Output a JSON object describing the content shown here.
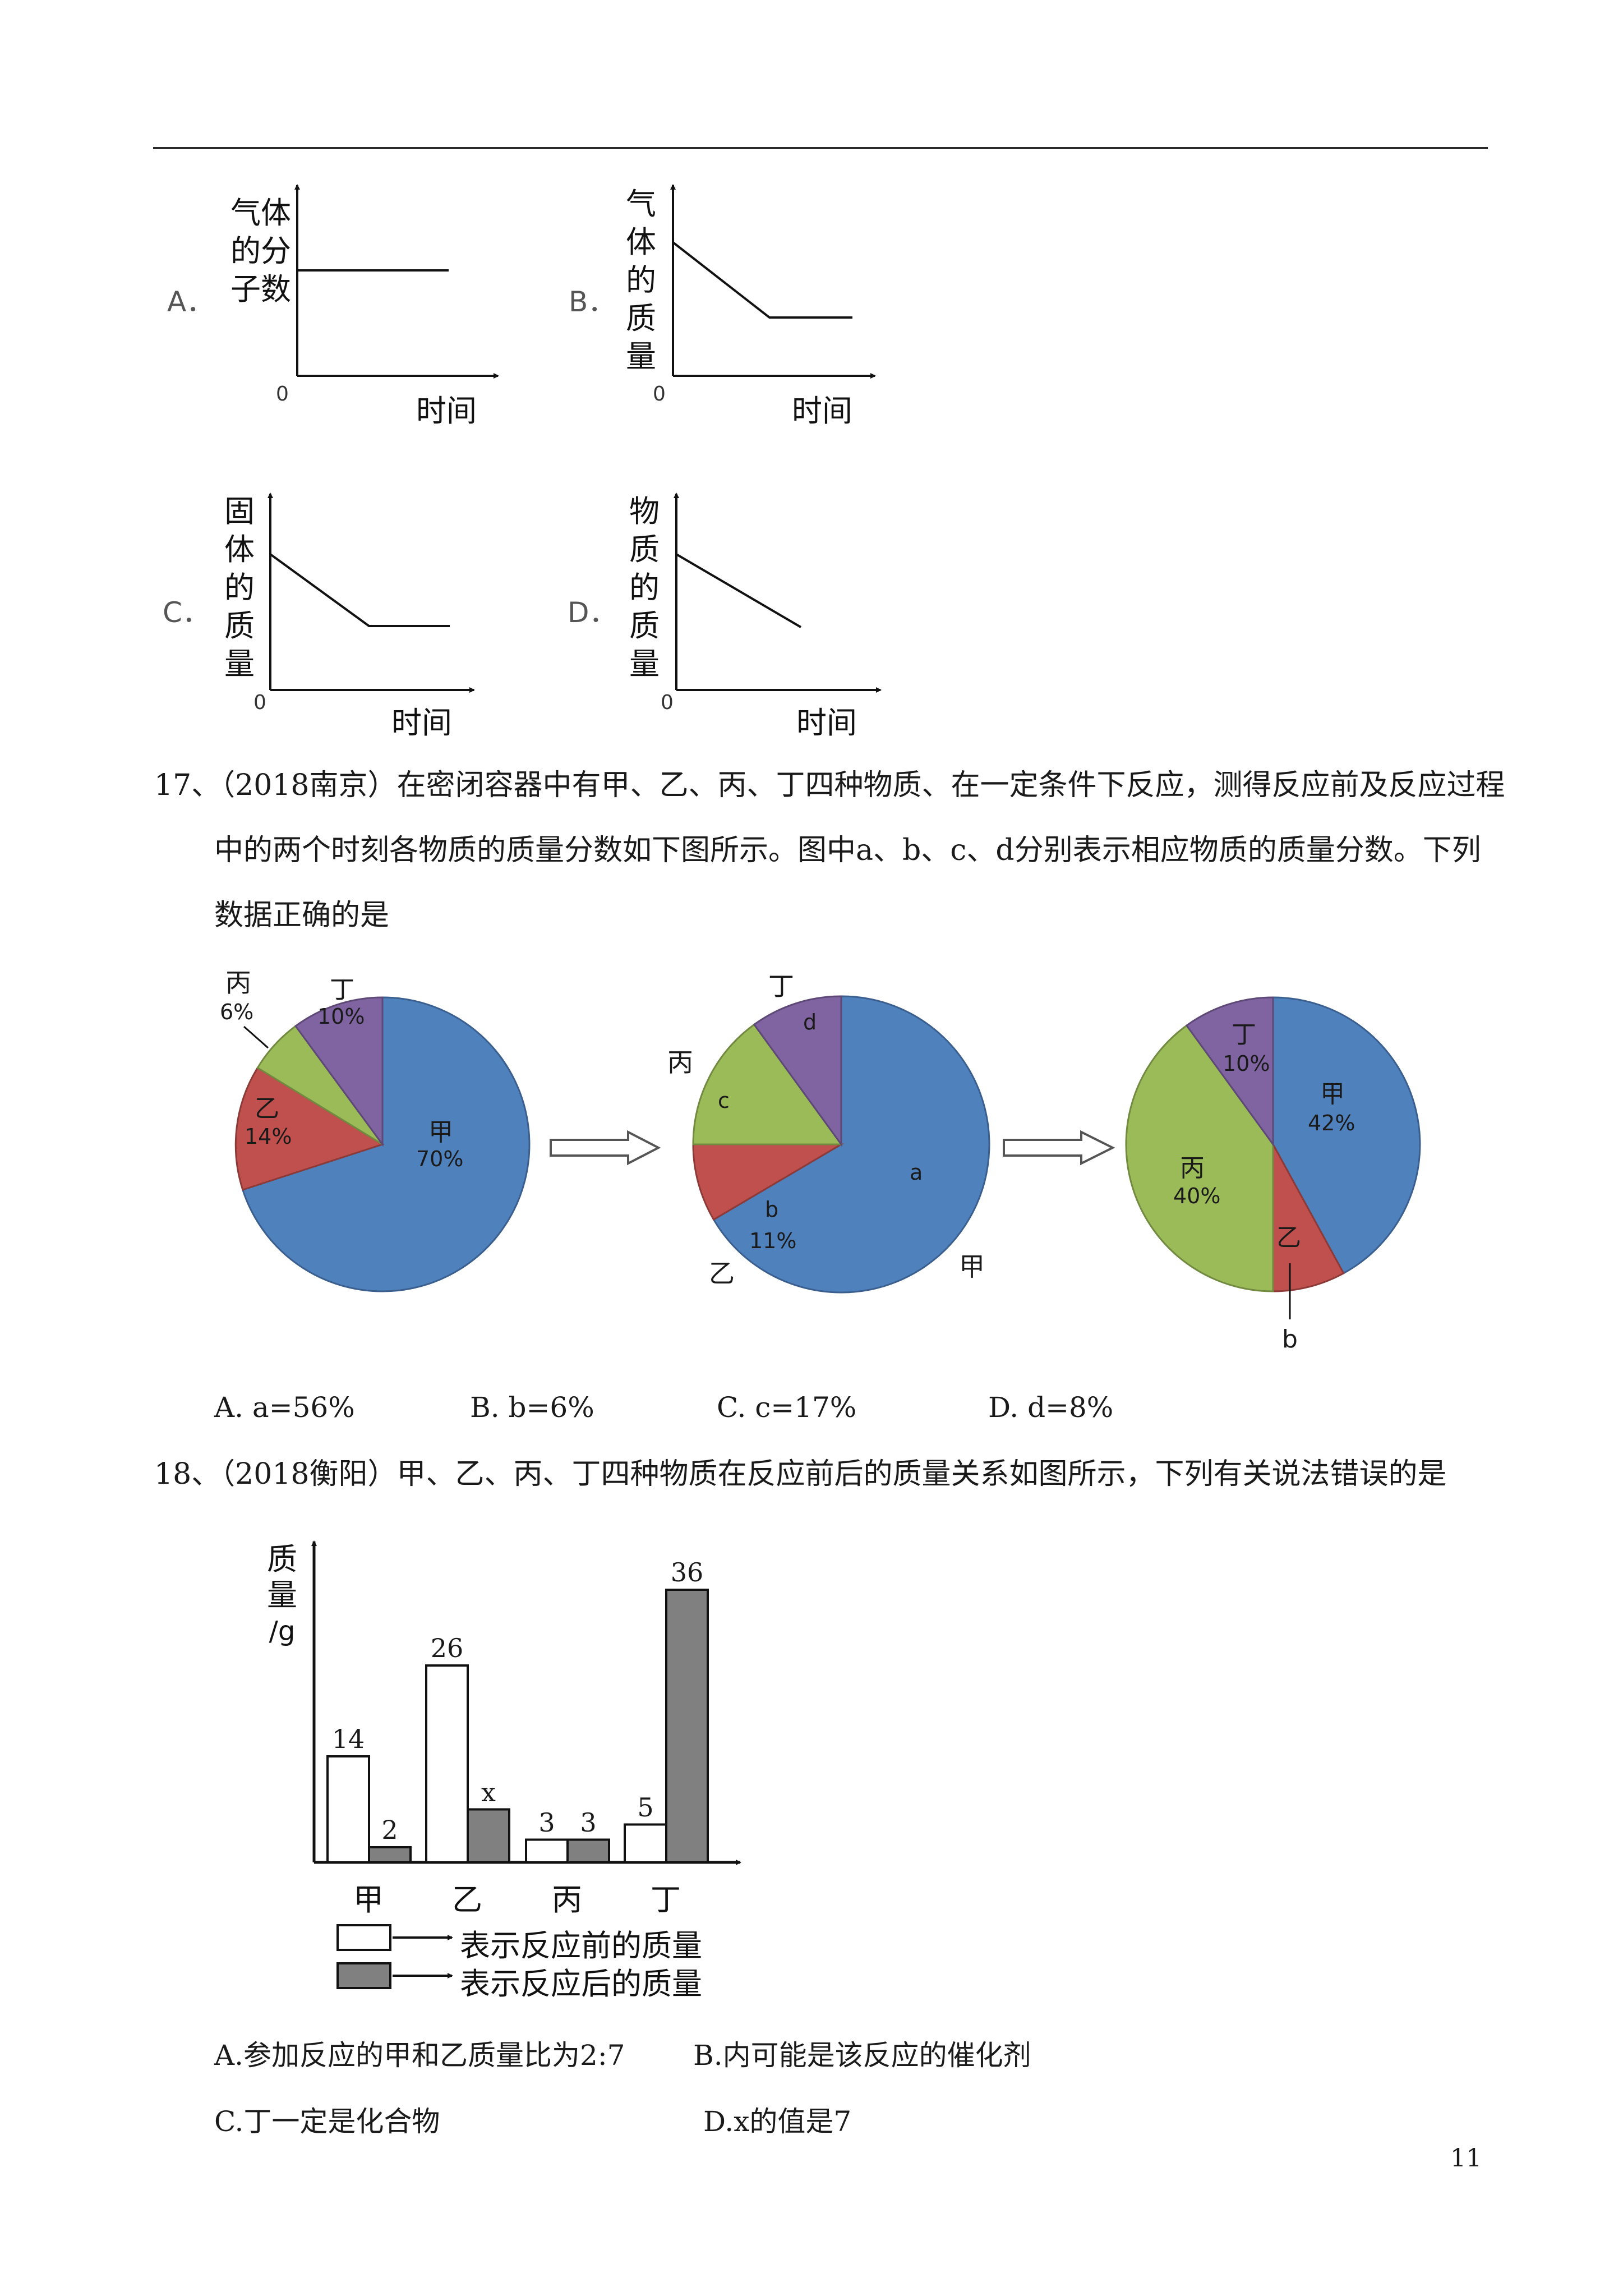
{
  "graphs": [
    {
      "letter": "A．",
      "ylabel_lines": [
        "气体",
        "的分",
        "子数"
      ],
      "xlabel": "时间",
      "origin": "0"
    },
    {
      "letter": "B．",
      "ylabel_lines": [
        "气",
        "体",
        "的",
        "质",
        "量"
      ],
      "xlabel": "时间",
      "origin": "0"
    },
    {
      "letter": "C．",
      "ylabel_lines": [
        "固",
        "体",
        "的",
        "质",
        "量"
      ],
      "xlabel": "时间",
      "origin": "0"
    },
    {
      "letter": "D．",
      "ylabel_lines": [
        "物",
        "质",
        "的",
        "质",
        "量"
      ],
      "xlabel": "时间",
      "origin": "0"
    }
  ],
  "q17": {
    "line1": "17、（2018南京）在密闭容器中有甲、乙、丙、丁四种物质、在一定条件下反应，测得反应前及反应过程",
    "line2": "中的两个时刻各物质的质量分数如下图所示。图中a、b、c、d分别表示相应物质的质量分数。下列",
    "line3": "数据正确的是",
    "pie1": {
      "jia_name": "甲",
      "jia_val": "70%",
      "yi_name": "乙",
      "yi_val": "14%",
      "bing_name": "丙",
      "bing_val": "6%",
      "ding_name": "丁",
      "ding_val": "10%"
    },
    "pie2": {
      "jia_name": "甲",
      "jia_val": "a",
      "yi_name": "乙",
      "yi_val": "b",
      "yi_val2": "11%",
      "bing_name": "丙",
      "bing_val": "c",
      "ding_name": "丁",
      "ding_val": "d"
    },
    "pie3": {
      "jia_name": "甲",
      "jia_val": "42%",
      "yi_name": "乙",
      "yi_val": "b",
      "bing_name": "丙",
      "bing_val": "40%",
      "ding_name": "丁",
      "ding_val": "10%"
    },
    "options": [
      "A.  a=56%",
      "B.  b=6%",
      "C.  c=17%",
      "D.  d=8%"
    ]
  },
  "q18": {
    "line1": "18、（2018衡阳）甲、乙、丙、丁四种物质在反应前后的质量关系如图所示，下列有关说法错误的是",
    "chart_data": {
      "type": "bar",
      "categories": [
        "甲",
        "乙",
        "丙",
        "丁"
      ],
      "series": [
        {
          "name": "表示反应前的质量",
          "values": [
            14,
            26,
            3,
            5
          ],
          "color": "#ffffff"
        },
        {
          "name": "表示反应后的质量",
          "values": [
            2,
            null,
            3,
            36
          ],
          "color": "#808080"
        }
      ],
      "value_labels_before": [
        "14",
        "26",
        "3",
        "5"
      ],
      "value_labels_after": [
        "2",
        "x",
        "3",
        "36"
      ],
      "x_after_estimate": 7,
      "ylabel_lines": [
        "质",
        "量",
        "/g"
      ],
      "ylim": [
        0,
        40
      ],
      "grid": false,
      "legend_position": "bottom"
    },
    "options": [
      "A.参加反应的甲和乙质量比为2:7",
      "B.内可能是该反应的催化剂",
      "C.丁一定是化合物",
      "D.x的值是7"
    ]
  },
  "page_number": "11"
}
